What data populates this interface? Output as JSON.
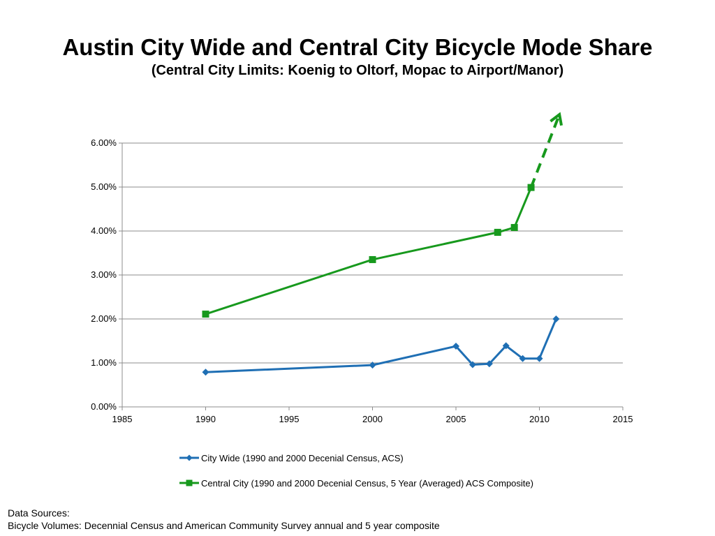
{
  "chart_data": {
    "type": "line",
    "title": "Austin City Wide and Central City Bicycle Mode Share",
    "subtitle": "(Central City Limits: Koenig to Oltorf, Mopac to Airport/Manor)",
    "xlabel": "",
    "ylabel": "",
    "xlim": [
      1985,
      2015
    ],
    "ylim": [
      0,
      0.06
    ],
    "x_ticks": [
      "1985",
      "1990",
      "1995",
      "2000",
      "2005",
      "2010",
      "2015"
    ],
    "y_ticks": [
      "0.00%",
      "1.00%",
      "2.00%",
      "3.00%",
      "4.00%",
      "5.00%",
      "6.00%"
    ],
    "grid": "horizontal",
    "legend_position": "bottom",
    "series": [
      {
        "name": "City Wide (1990 and 2000 Decenial Census, ACS)",
        "color": "#1f6fb4",
        "marker": "diamond",
        "x": [
          1990,
          2000,
          2005,
          2006,
          2007,
          2008,
          2009,
          2010,
          2011
        ],
        "y": [
          0.0079,
          0.0095,
          0.0138,
          0.0096,
          0.0098,
          0.0139,
          0.011,
          0.011,
          0.02
        ]
      },
      {
        "name": "Central City (1990 and 2000 Decenial Census, 5 Year (Averaged) ACS Composite)",
        "color": "#17991d",
        "marker": "square",
        "x": [
          1990,
          2000,
          2007.5,
          2008.5,
          2009.5
        ],
        "y": [
          0.0211,
          0.0335,
          0.0397,
          0.0408,
          0.0499
        ]
      }
    ],
    "annotations": [
      {
        "type": "dashed-arrow",
        "color": "#17991d",
        "from": [
          2009.5,
          0.0499
        ],
        "to": [
          2011.2,
          0.0665
        ]
      }
    ]
  },
  "sources": {
    "heading": "Data Sources:",
    "line": "Bicycle Volumes: Decennial Census and American Community Survey annual and 5 year composite"
  }
}
